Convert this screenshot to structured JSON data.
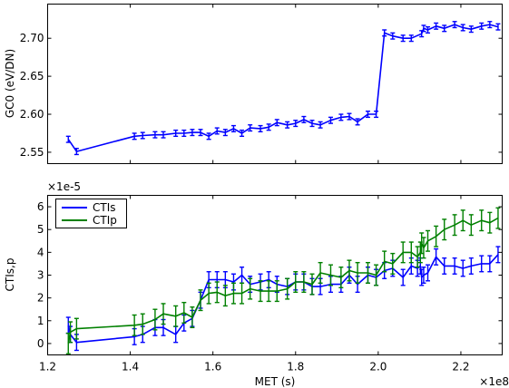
{
  "chart_data": [
    {
      "type": "line",
      "ylabel": "GC0  (eV/DN)",
      "xlabel": "",
      "xlim": [
        120000000.0,
        230000000.0
      ],
      "ylim": [
        2.535,
        2.745
      ],
      "xticks": [
        120000000.0,
        140000000.0,
        160000000.0,
        180000000.0,
        200000000.0,
        220000000.0
      ],
      "yticks": [
        2.55,
        2.6,
        2.65,
        2.7
      ],
      "ytick_labels": [
        "2.55",
        "2.60",
        "2.65",
        "2.70"
      ],
      "grid": false,
      "series": [
        {
          "color": "#0000ff",
          "x": [
            125000000.0,
            127000000.0,
            141000000.0,
            143000000.0,
            146000000.0,
            148000000.0,
            151000000.0,
            153000000.0,
            155000000.0,
            157000000.0,
            159000000.0,
            161000000.0,
            163000000.0,
            165000000.0,
            167000000.0,
            169000000.0,
            171500000.0,
            173500000.0,
            175500000.0,
            178000000.0,
            180000000.0,
            182000000.0,
            184000000.0,
            186000000.0,
            188500000.0,
            191000000.0,
            193000000.0,
            195000000.0,
            197500000.0,
            199500000.0,
            201500000.0,
            203500000.0,
            206000000.0,
            208000000.0,
            210500000.0,
            211000000.0,
            212000000.0,
            214000000.0,
            216000000.0,
            218500000.0,
            220500000.0,
            222500000.0,
            225000000.0,
            227000000.0,
            229000000.0
          ],
          "y": [
            2.567,
            2.551,
            2.571,
            2.572,
            2.573,
            2.573,
            2.575,
            2.575,
            2.576,
            2.576,
            2.571,
            2.578,
            2.576,
            2.581,
            2.575,
            2.582,
            2.581,
            2.583,
            2.589,
            2.586,
            2.588,
            2.593,
            2.588,
            2.586,
            2.592,
            2.596,
            2.597,
            2.59,
            2.6,
            2.6,
            2.707,
            2.703,
            2.7,
            2.7,
            2.706,
            2.713,
            2.711,
            2.716,
            2.713,
            2.718,
            2.714,
            2.712,
            2.716,
            2.718,
            2.715
          ],
          "yerr": 0.004
        }
      ]
    },
    {
      "type": "line",
      "ylabel": "CTIs,p",
      "xlabel": "MET (s)",
      "x_multiplier": "×1e8",
      "y_multiplier": "×1e-5",
      "xlim": [
        120000000.0,
        230000000.0
      ],
      "ylim": [
        -0.5,
        6.5
      ],
      "xticks": [
        120000000.0,
        140000000.0,
        160000000.0,
        180000000.0,
        200000000.0,
        220000000.0
      ],
      "xtick_labels": [
        "1.2",
        "1.4",
        "1.6",
        "1.8",
        "2.0",
        "2.2"
      ],
      "yticks": [
        0,
        1,
        2,
        3,
        4,
        5,
        6
      ],
      "ytick_labels": [
        "0",
        "1",
        "2",
        "3",
        "4",
        "5",
        "6"
      ],
      "grid": false,
      "legend": "top-left",
      "series": [
        {
          "name": "CTIs",
          "color": "#0000ff",
          "x": [
            125000000.0,
            125500000.0,
            127000000.0,
            141000000.0,
            143000000.0,
            146000000.0,
            148000000.0,
            151000000.0,
            153000000.0,
            155000000.0,
            157000000.0,
            159000000.0,
            161000000.0,
            163000000.0,
            165000000.0,
            167000000.0,
            169000000.0,
            171500000.0,
            173500000.0,
            175500000.0,
            178000000.0,
            180000000.0,
            182000000.0,
            184000000.0,
            186000000.0,
            188500000.0,
            191000000.0,
            193000000.0,
            195000000.0,
            197500000.0,
            199500000.0,
            201500000.0,
            203500000.0,
            206000000.0,
            208000000.0,
            209500000.0,
            210200000.0,
            210500000.0,
            211000000.0,
            212000000.0,
            214000000.0,
            216000000.0,
            218500000.0,
            220500000.0,
            222500000.0,
            225000000.0,
            227000000.0,
            229000000.0
          ],
          "y": [
            0.8,
            0.4,
            0.05,
            0.3,
            0.4,
            0.7,
            0.7,
            0.4,
            0.9,
            1.1,
            1.9,
            2.8,
            2.8,
            2.8,
            2.7,
            3.0,
            2.6,
            2.7,
            2.8,
            2.6,
            2.5,
            2.7,
            2.7,
            2.5,
            2.5,
            2.6,
            2.6,
            3.0,
            2.6,
            3.0,
            2.9,
            3.2,
            3.3,
            2.9,
            3.4,
            3.3,
            3.4,
            2.9,
            3.0,
            3.1,
            3.8,
            3.4,
            3.4,
            3.3,
            3.4,
            3.5,
            3.5,
            3.9
          ],
          "yerr": 0.35
        },
        {
          "name": "CTIp",
          "color": "#008000",
          "x": [
            125000000.0,
            125500000.0,
            127000000.0,
            141000000.0,
            143000000.0,
            146000000.0,
            148000000.0,
            151000000.0,
            153000000.0,
            155000000.0,
            157000000.0,
            159000000.0,
            161000000.0,
            163000000.0,
            165000000.0,
            167000000.0,
            169000000.0,
            171500000.0,
            173500000.0,
            175500000.0,
            178000000.0,
            180000000.0,
            182000000.0,
            184000000.0,
            186000000.0,
            188500000.0,
            191000000.0,
            193000000.0,
            195000000.0,
            197500000.0,
            199500000.0,
            201500000.0,
            203500000.0,
            206000000.0,
            208000000.0,
            209500000.0,
            210200000.0,
            210500000.0,
            211000000.0,
            212000000.0,
            214000000.0,
            216000000.0,
            218500000.0,
            220500000.0,
            222500000.0,
            225000000.0,
            227000000.0,
            229000000.0
          ],
          "y": [
            0.0,
            0.5,
            0.65,
            0.8,
            0.85,
            1.05,
            1.3,
            1.2,
            1.35,
            1.15,
            1.9,
            2.2,
            2.25,
            2.1,
            2.2,
            2.2,
            2.4,
            2.3,
            2.3,
            2.3,
            2.4,
            2.7,
            2.7,
            2.6,
            3.1,
            3.0,
            2.9,
            3.2,
            3.1,
            3.1,
            3.0,
            3.6,
            3.5,
            4.0,
            4.0,
            3.8,
            4.0,
            4.4,
            4.2,
            4.5,
            4.7,
            5.0,
            5.2,
            5.4,
            5.2,
            5.4,
            5.3,
            5.5
          ],
          "yerr": 0.45
        }
      ]
    }
  ]
}
